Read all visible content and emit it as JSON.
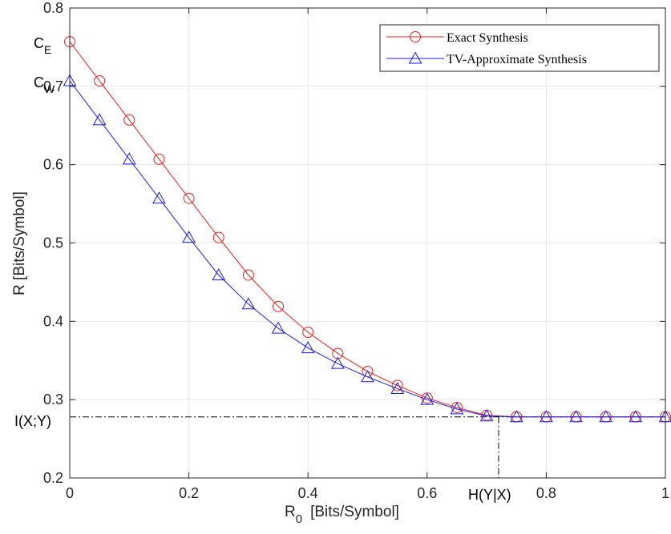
{
  "chart_data": {
    "type": "line",
    "xlabel": "R",
    "xlabel_sub": "0",
    "xlabel_units": "[Bits/Symbol]",
    "ylabel": "R  [Bits/Symbol]",
    "xlim": [
      0,
      1
    ],
    "ylim": [
      0.2,
      0.8
    ],
    "x_ticks": [
      0,
      0.2,
      0.4,
      0.6,
      0.8,
      1
    ],
    "x_tick_labels": [
      "0",
      "0.2",
      "0.4",
      "0.6",
      "0.8",
      "1"
    ],
    "y_ticks": [
      0.2,
      0.3,
      0.4,
      0.5,
      0.6,
      0.7,
      0.8
    ],
    "y_tick_labels": [
      "0.2",
      "0.3",
      "0.4",
      "0.5",
      "0.6",
      "0.7",
      "0.8"
    ],
    "grid": true,
    "legend_position": "top-right",
    "x": [
      0,
      0.05,
      0.1,
      0.15,
      0.2,
      0.25,
      0.3,
      0.35,
      0.4,
      0.45,
      0.5,
      0.55,
      0.6,
      0.65,
      0.7,
      0.75,
      0.8,
      0.85,
      0.9,
      0.95,
      1.0
    ],
    "series": [
      {
        "name": "Exact Synthesis",
        "color": "#e8201c",
        "marker": "circle",
        "values": [
          0.757,
          0.707,
          0.657,
          0.607,
          0.557,
          0.507,
          0.459,
          0.419,
          0.386,
          0.359,
          0.336,
          0.318,
          0.302,
          0.29,
          0.28,
          0.278,
          0.278,
          0.278,
          0.278,
          0.278,
          0.278
        ]
      },
      {
        "name": "TV-Approximate Synthesis",
        "color": "#1a1ae6",
        "marker": "triangle",
        "values": [
          0.707,
          0.657,
          0.607,
          0.557,
          0.507,
          0.459,
          0.422,
          0.391,
          0.366,
          0.346,
          0.329,
          0.314,
          0.3,
          0.288,
          0.279,
          0.278,
          0.278,
          0.278,
          0.278,
          0.278,
          0.278
        ]
      }
    ],
    "annotations": {
      "c_e": {
        "label": "C",
        "sub": "E",
        "y": 0.757
      },
      "c_w": {
        "label": "C",
        "sub": "W",
        "y": 0.707
      },
      "i_xy": {
        "label": "I(X;Y)",
        "y": 0.278
      },
      "h_yx": {
        "label": "H(Y|X)",
        "x": 0.72
      }
    }
  }
}
